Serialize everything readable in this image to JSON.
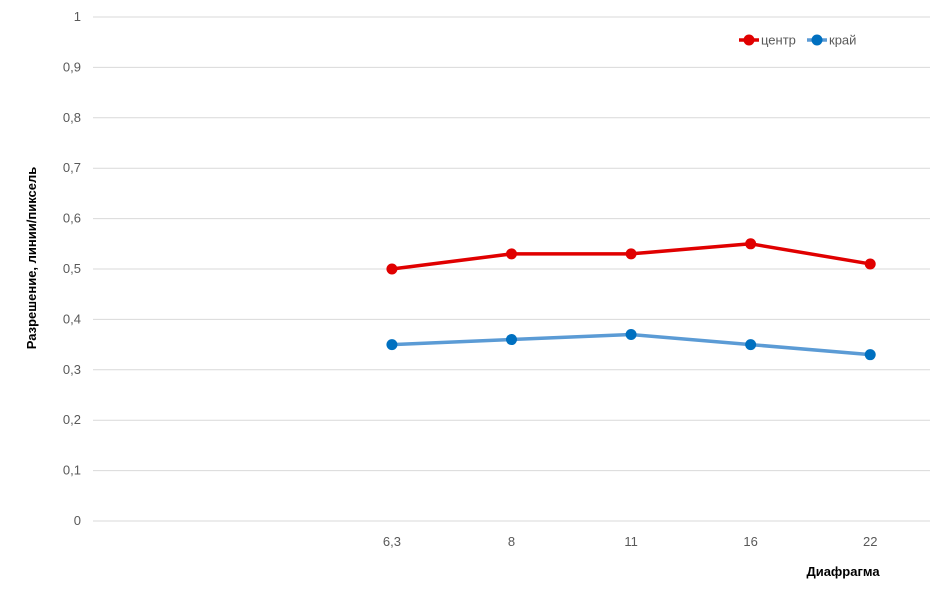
{
  "chart_data": {
    "type": "line",
    "categories": [
      "6,3",
      "8",
      "11",
      "16",
      "22"
    ],
    "category_slots": 7,
    "category_offset": 2,
    "series": [
      {
        "name": "центр",
        "values": [
          0.5,
          0.53,
          0.53,
          0.55,
          0.51
        ],
        "color": "#e00000"
      },
      {
        "name": "край",
        "values": [
          0.35,
          0.36,
          0.37,
          0.35,
          0.33
        ],
        "color": "#0070c0",
        "line_color": "#5b9bd5"
      }
    ],
    "ylim": [
      0,
      1
    ],
    "yticks": [
      "0",
      "0,1",
      "0,2",
      "0,3",
      "0,4",
      "0,5",
      "0,6",
      "0,7",
      "0,8",
      "0,9",
      "1"
    ],
    "xlabel": "Диафрагма",
    "ylabel": "Разрешение, линии/пиксель",
    "grid": true,
    "legend_position": "top-right"
  }
}
